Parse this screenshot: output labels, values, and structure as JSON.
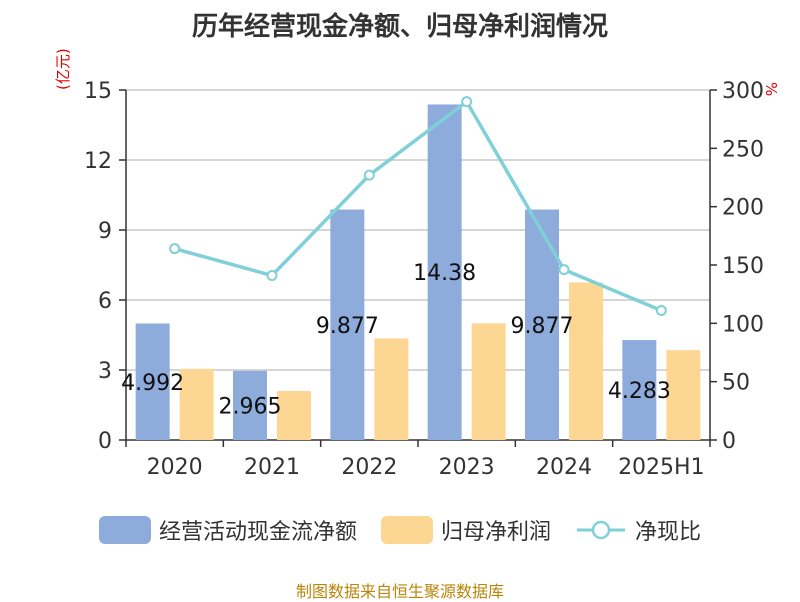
{
  "title": "历年经营现金净额、归母净利润情况",
  "source": "制图数据来自恒生聚源数据库",
  "colors": {
    "cash_flow": "#8eacdb",
    "net_profit": "#fdd693",
    "ratio": "#7fd0d8",
    "unit": "#e00000",
    "axis": "#333333",
    "grid": "#c8c8c8",
    "source": "#b8860b"
  },
  "chart_data": {
    "type": "bar",
    "title": "历年经营现金净额、归母净利润情况",
    "categories": [
      "2020",
      "2021",
      "2022",
      "2023",
      "2024",
      "2025H1"
    ],
    "y_left": {
      "unit": "(亿元)",
      "ylim": [
        0,
        15
      ],
      "ticks": [
        "0",
        "3",
        "6",
        "9",
        "12",
        "15"
      ]
    },
    "y_right": {
      "unit": "%",
      "ylim": [
        0,
        300
      ],
      "ticks": [
        "0",
        "50",
        "100",
        "150",
        "200",
        "250",
        "300"
      ]
    },
    "series": [
      {
        "name": "经营活动现金流净额",
        "kind": "bar",
        "axis": "left",
        "values": [
          4.992,
          2.965,
          9.877,
          14.38,
          9.877,
          4.283
        ],
        "data_labels": [
          "4.992",
          "2.965",
          "9.877",
          "14.38",
          "9.877",
          "4.283"
        ]
      },
      {
        "name": "归母净利润",
        "kind": "bar",
        "axis": "left",
        "values": [
          3.05,
          2.1,
          4.35,
          5.0,
          6.75,
          3.85
        ]
      },
      {
        "name": "净现比",
        "kind": "line",
        "axis": "right",
        "values": [
          164,
          141,
          227,
          290,
          146,
          111
        ]
      }
    ],
    "grid": true,
    "legend_position": "bottom"
  }
}
